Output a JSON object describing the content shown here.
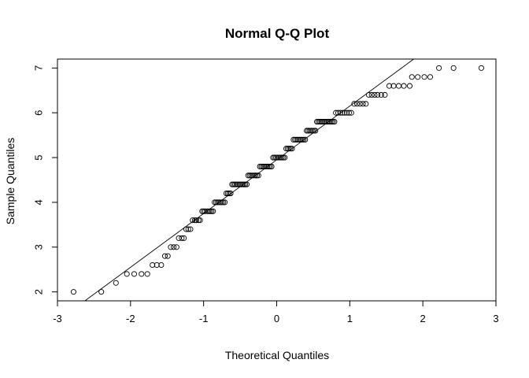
{
  "chart_data": {
    "type": "scatter",
    "title": "Normal Q-Q Plot",
    "xlabel": "Theoretical Quantiles",
    "ylabel": "Sample Quantiles",
    "xlim": [
      -3,
      3
    ],
    "ylim": [
      1.8,
      7.2
    ],
    "xticks": [
      -3,
      -2,
      -1,
      0,
      1,
      2,
      3
    ],
    "yticks": [
      2,
      3,
      4,
      5,
      6,
      7
    ],
    "grid": false,
    "reference_line": {
      "intercept": 4.95,
      "slope": 1.2
    },
    "points": [
      {
        "x": -2.78,
        "y": 2.0
      },
      {
        "x": -2.4,
        "y": 2.0
      },
      {
        "x": -2.2,
        "y": 2.2
      },
      {
        "x": -2.05,
        "y": 2.4
      },
      {
        "x": -1.95,
        "y": 2.4
      },
      {
        "x": -1.85,
        "y": 2.4
      },
      {
        "x": -1.77,
        "y": 2.4
      },
      {
        "x": -1.7,
        "y": 2.6
      },
      {
        "x": -1.64,
        "y": 2.6
      },
      {
        "x": -1.58,
        "y": 2.6
      },
      {
        "x": -1.53,
        "y": 2.8
      },
      {
        "x": -1.49,
        "y": 2.8
      },
      {
        "x": -1.45,
        "y": 3.0
      },
      {
        "x": -1.41,
        "y": 3.0
      },
      {
        "x": -1.37,
        "y": 3.0
      },
      {
        "x": -1.34,
        "y": 3.2
      },
      {
        "x": -1.3,
        "y": 3.2
      },
      {
        "x": -1.27,
        "y": 3.2
      },
      {
        "x": -1.24,
        "y": 3.4
      },
      {
        "x": -1.21,
        "y": 3.4
      },
      {
        "x": -1.18,
        "y": 3.4
      },
      {
        "x": -1.15,
        "y": 3.6
      },
      {
        "x": -1.12,
        "y": 3.6
      },
      {
        "x": -1.1,
        "y": 3.6
      },
      {
        "x": -1.07,
        "y": 3.6
      },
      {
        "x": -1.05,
        "y": 3.6
      },
      {
        "x": -1.02,
        "y": 3.8
      },
      {
        "x": -1.0,
        "y": 3.8
      },
      {
        "x": -0.98,
        "y": 3.8
      },
      {
        "x": -0.95,
        "y": 3.8
      },
      {
        "x": -0.93,
        "y": 3.8
      },
      {
        "x": -0.91,
        "y": 3.8
      },
      {
        "x": -0.89,
        "y": 3.8
      },
      {
        "x": -0.87,
        "y": 3.8
      },
      {
        "x": -0.85,
        "y": 4.0
      },
      {
        "x": -0.83,
        "y": 4.0
      },
      {
        "x": -0.81,
        "y": 4.0
      },
      {
        "x": -0.79,
        "y": 4.0
      },
      {
        "x": -0.77,
        "y": 4.0
      },
      {
        "x": -0.75,
        "y": 4.0
      },
      {
        "x": -0.73,
        "y": 4.0
      },
      {
        "x": -0.71,
        "y": 4.0
      },
      {
        "x": -0.69,
        "y": 4.2
      },
      {
        "x": -0.67,
        "y": 4.2
      },
      {
        "x": -0.65,
        "y": 4.2
      },
      {
        "x": -0.63,
        "y": 4.2
      },
      {
        "x": -0.61,
        "y": 4.4
      },
      {
        "x": -0.59,
        "y": 4.4
      },
      {
        "x": -0.57,
        "y": 4.4
      },
      {
        "x": -0.55,
        "y": 4.4
      },
      {
        "x": -0.53,
        "y": 4.4
      },
      {
        "x": -0.51,
        "y": 4.4
      },
      {
        "x": -0.49,
        "y": 4.4
      },
      {
        "x": -0.47,
        "y": 4.4
      },
      {
        "x": -0.45,
        "y": 4.4
      },
      {
        "x": -0.43,
        "y": 4.4
      },
      {
        "x": -0.41,
        "y": 4.4
      },
      {
        "x": -0.39,
        "y": 4.6
      },
      {
        "x": -0.37,
        "y": 4.6
      },
      {
        "x": -0.35,
        "y": 4.6
      },
      {
        "x": -0.33,
        "y": 4.6
      },
      {
        "x": -0.31,
        "y": 4.6
      },
      {
        "x": -0.29,
        "y": 4.6
      },
      {
        "x": -0.27,
        "y": 4.6
      },
      {
        "x": -0.25,
        "y": 4.6
      },
      {
        "x": -0.23,
        "y": 4.8
      },
      {
        "x": -0.21,
        "y": 4.8
      },
      {
        "x": -0.19,
        "y": 4.8
      },
      {
        "x": -0.17,
        "y": 4.8
      },
      {
        "x": -0.15,
        "y": 4.8
      },
      {
        "x": -0.13,
        "y": 4.8
      },
      {
        "x": -0.11,
        "y": 4.8
      },
      {
        "x": -0.09,
        "y": 4.8
      },
      {
        "x": -0.07,
        "y": 4.8
      },
      {
        "x": -0.05,
        "y": 5.0
      },
      {
        "x": -0.03,
        "y": 5.0
      },
      {
        "x": -0.01,
        "y": 5.0
      },
      {
        "x": 0.01,
        "y": 5.0
      },
      {
        "x": 0.03,
        "y": 5.0
      },
      {
        "x": 0.05,
        "y": 5.0
      },
      {
        "x": 0.07,
        "y": 5.0
      },
      {
        "x": 0.09,
        "y": 5.0
      },
      {
        "x": 0.11,
        "y": 5.0
      },
      {
        "x": 0.13,
        "y": 5.2
      },
      {
        "x": 0.15,
        "y": 5.2
      },
      {
        "x": 0.17,
        "y": 5.2
      },
      {
        "x": 0.19,
        "y": 5.2
      },
      {
        "x": 0.21,
        "y": 5.2
      },
      {
        "x": 0.23,
        "y": 5.4
      },
      {
        "x": 0.25,
        "y": 5.4
      },
      {
        "x": 0.27,
        "y": 5.4
      },
      {
        "x": 0.29,
        "y": 5.4
      },
      {
        "x": 0.31,
        "y": 5.4
      },
      {
        "x": 0.33,
        "y": 5.4
      },
      {
        "x": 0.35,
        "y": 5.4
      },
      {
        "x": 0.37,
        "y": 5.4
      },
      {
        "x": 0.39,
        "y": 5.4
      },
      {
        "x": 0.41,
        "y": 5.6
      },
      {
        "x": 0.43,
        "y": 5.6
      },
      {
        "x": 0.45,
        "y": 5.6
      },
      {
        "x": 0.47,
        "y": 5.6
      },
      {
        "x": 0.49,
        "y": 5.6
      },
      {
        "x": 0.51,
        "y": 5.6
      },
      {
        "x": 0.53,
        "y": 5.6
      },
      {
        "x": 0.55,
        "y": 5.8
      },
      {
        "x": 0.57,
        "y": 5.8
      },
      {
        "x": 0.59,
        "y": 5.8
      },
      {
        "x": 0.61,
        "y": 5.8
      },
      {
        "x": 0.63,
        "y": 5.8
      },
      {
        "x": 0.65,
        "y": 5.8
      },
      {
        "x": 0.67,
        "y": 5.8
      },
      {
        "x": 0.69,
        "y": 5.8
      },
      {
        "x": 0.71,
        "y": 5.8
      },
      {
        "x": 0.73,
        "y": 5.8
      },
      {
        "x": 0.75,
        "y": 5.8
      },
      {
        "x": 0.77,
        "y": 5.8
      },
      {
        "x": 0.79,
        "y": 5.8
      },
      {
        "x": 0.81,
        "y": 6.0
      },
      {
        "x": 0.84,
        "y": 6.0
      },
      {
        "x": 0.87,
        "y": 6.0
      },
      {
        "x": 0.9,
        "y": 6.0
      },
      {
        "x": 0.93,
        "y": 6.0
      },
      {
        "x": 0.96,
        "y": 6.0
      },
      {
        "x": 0.99,
        "y": 6.0
      },
      {
        "x": 1.02,
        "y": 6.0
      },
      {
        "x": 1.06,
        "y": 6.2
      },
      {
        "x": 1.1,
        "y": 6.2
      },
      {
        "x": 1.14,
        "y": 6.2
      },
      {
        "x": 1.18,
        "y": 6.2
      },
      {
        "x": 1.22,
        "y": 6.2
      },
      {
        "x": 1.26,
        "y": 6.4
      },
      {
        "x": 1.3,
        "y": 6.4
      },
      {
        "x": 1.34,
        "y": 6.4
      },
      {
        "x": 1.38,
        "y": 6.4
      },
      {
        "x": 1.43,
        "y": 6.4
      },
      {
        "x": 1.48,
        "y": 6.4
      },
      {
        "x": 1.54,
        "y": 6.6
      },
      {
        "x": 1.6,
        "y": 6.6
      },
      {
        "x": 1.67,
        "y": 6.6
      },
      {
        "x": 1.74,
        "y": 6.6
      },
      {
        "x": 1.82,
        "y": 6.6
      },
      {
        "x": 1.85,
        "y": 6.8
      },
      {
        "x": 1.93,
        "y": 6.8
      },
      {
        "x": 2.02,
        "y": 6.8
      },
      {
        "x": 2.1,
        "y": 6.8
      },
      {
        "x": 2.22,
        "y": 7.0
      },
      {
        "x": 2.42,
        "y": 7.0
      },
      {
        "x": 2.8,
        "y": 7.0
      }
    ]
  }
}
